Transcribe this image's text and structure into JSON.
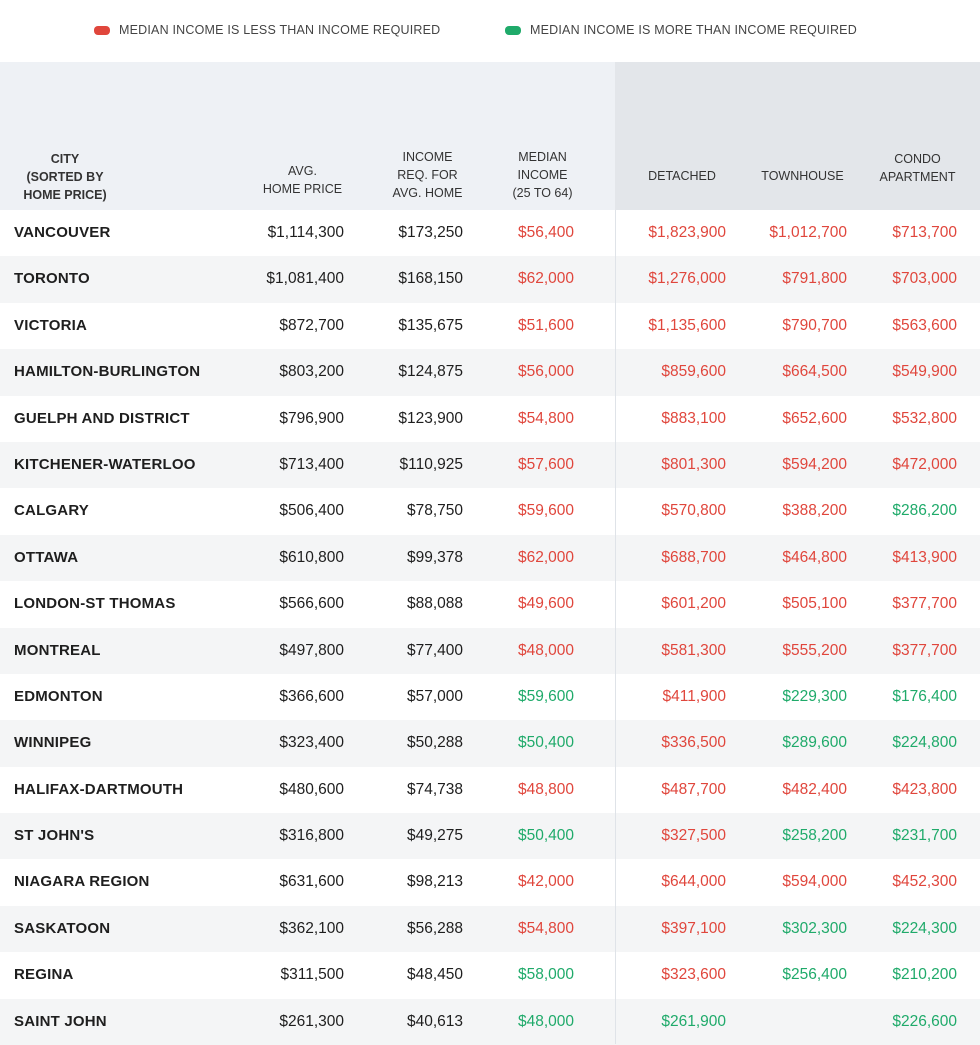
{
  "legend": [
    {
      "label": "MEDIAN INCOME IS LESS THAN INCOME REQUIRED",
      "color": "#e0463c"
    },
    {
      "label": "MEDIAN INCOME IS MORE THAN INCOME REQUIRED",
      "color": "#1faa6a"
    }
  ],
  "colors": {
    "red": "#e0463c",
    "green": "#1faa6a",
    "neutral": "#1e1e1e"
  },
  "chart_data": {
    "type": "table",
    "columns": [
      "CITY\n(SORTED BY\nHOME PRICE)",
      "AVG.\nHOME PRICE",
      "INCOME\nREQ. FOR\nAVG. HOME",
      "MEDIAN\nINCOME\n(25 TO 64)",
      "DETACHED",
      "TOWNHOUSE",
      "CONDO\nAPARTMENT"
    ],
    "rows": [
      {
        "city": "VANCOUVER",
        "avg": "$1,114,300",
        "req": "$173,250",
        "median": [
          "$56,400",
          "red"
        ],
        "detached": [
          "$1,823,900",
          "red"
        ],
        "townhouse": [
          "$1,012,700",
          "red"
        ],
        "condo": [
          "$713,700",
          "red"
        ]
      },
      {
        "city": "TORONTO",
        "avg": "$1,081,400",
        "req": "$168,150",
        "median": [
          "$62,000",
          "red"
        ],
        "detached": [
          "$1,276,000",
          "red"
        ],
        "townhouse": [
          "$791,800",
          "red"
        ],
        "condo": [
          "$703,000",
          "red"
        ]
      },
      {
        "city": "VICTORIA",
        "avg": "$872,700",
        "req": "$135,675",
        "median": [
          "$51,600",
          "red"
        ],
        "detached": [
          "$1,135,600",
          "red"
        ],
        "townhouse": [
          "$790,700",
          "red"
        ],
        "condo": [
          "$563,600",
          "red"
        ]
      },
      {
        "city": "HAMILTON-BURLINGTON",
        "avg": "$803,200",
        "req": "$124,875",
        "median": [
          "$56,000",
          "red"
        ],
        "detached": [
          "$859,600",
          "red"
        ],
        "townhouse": [
          "$664,500",
          "red"
        ],
        "condo": [
          "$549,900",
          "red"
        ]
      },
      {
        "city": "GUELPH AND DISTRICT",
        "avg": "$796,900",
        "req": "$123,900",
        "median": [
          "$54,800",
          "red"
        ],
        "detached": [
          "$883,100",
          "red"
        ],
        "townhouse": [
          "$652,600",
          "red"
        ],
        "condo": [
          "$532,800",
          "red"
        ]
      },
      {
        "city": "KITCHENER-WATERLOO",
        "avg": "$713,400",
        "req": "$110,925",
        "median": [
          "$57,600",
          "red"
        ],
        "detached": [
          "$801,300",
          "red"
        ],
        "townhouse": [
          "$594,200",
          "red"
        ],
        "condo": [
          "$472,000",
          "red"
        ]
      },
      {
        "city": "CALGARY",
        "avg": "$506,400",
        "req": "$78,750",
        "median": [
          "$59,600",
          "red"
        ],
        "detached": [
          "$570,800",
          "red"
        ],
        "townhouse": [
          "$388,200",
          "red"
        ],
        "condo": [
          "$286,200",
          "green"
        ]
      },
      {
        "city": "OTTAWA",
        "avg": "$610,800",
        "req": "$99,378",
        "median": [
          "$62,000",
          "red"
        ],
        "detached": [
          "$688,700",
          "red"
        ],
        "townhouse": [
          "$464,800",
          "red"
        ],
        "condo": [
          "$413,900",
          "red"
        ]
      },
      {
        "city": "LONDON-ST THOMAS",
        "avg": "$566,600",
        "req": "$88,088",
        "median": [
          "$49,600",
          "red"
        ],
        "detached": [
          "$601,200",
          "red"
        ],
        "townhouse": [
          "$505,100",
          "red"
        ],
        "condo": [
          "$377,700",
          "red"
        ]
      },
      {
        "city": "MONTREAL",
        "avg": "$497,800",
        "req": "$77,400",
        "median": [
          "$48,000",
          "red"
        ],
        "detached": [
          "$581,300",
          "red"
        ],
        "townhouse": [
          "$555,200",
          "red"
        ],
        "condo": [
          "$377,700",
          "red"
        ]
      },
      {
        "city": "EDMONTON",
        "avg": "$366,600",
        "req": "$57,000",
        "median": [
          "$59,600",
          "green"
        ],
        "detached": [
          "$411,900",
          "red"
        ],
        "townhouse": [
          "$229,300",
          "green"
        ],
        "condo": [
          "$176,400",
          "green"
        ]
      },
      {
        "city": "WINNIPEG",
        "avg": "$323,400",
        "req": "$50,288",
        "median": [
          "$50,400",
          "green"
        ],
        "detached": [
          "$336,500",
          "red"
        ],
        "townhouse": [
          "$289,600",
          "green"
        ],
        "condo": [
          "$224,800",
          "green"
        ]
      },
      {
        "city": "HALIFAX-DARTMOUTH",
        "avg": "$480,600",
        "req": "$74,738",
        "median": [
          "$48,800",
          "red"
        ],
        "detached": [
          "$487,700",
          "red"
        ],
        "townhouse": [
          "$482,400",
          "red"
        ],
        "condo": [
          "$423,800",
          "red"
        ]
      },
      {
        "city": "ST JOHN'S",
        "avg": "$316,800",
        "req": "$49,275",
        "median": [
          "$50,400",
          "green"
        ],
        "detached": [
          "$327,500",
          "red"
        ],
        "townhouse": [
          "$258,200",
          "green"
        ],
        "condo": [
          "$231,700",
          "green"
        ]
      },
      {
        "city": "NIAGARA REGION",
        "avg": "$631,600",
        "req": "$98,213",
        "median": [
          "$42,000",
          "red"
        ],
        "detached": [
          "$644,000",
          "red"
        ],
        "townhouse": [
          "$594,000",
          "red"
        ],
        "condo": [
          "$452,300",
          "red"
        ]
      },
      {
        "city": "SASKATOON",
        "avg": "$362,100",
        "req": "$56,288",
        "median": [
          "$54,800",
          "red"
        ],
        "detached": [
          "$397,100",
          "red"
        ],
        "townhouse": [
          "$302,300",
          "green"
        ],
        "condo": [
          "$224,300",
          "green"
        ]
      },
      {
        "city": "REGINA",
        "avg": "$311,500",
        "req": "$48,450",
        "median": [
          "$58,000",
          "green"
        ],
        "detached": [
          "$323,600",
          "red"
        ],
        "townhouse": [
          "$256,400",
          "green"
        ],
        "condo": [
          "$210,200",
          "green"
        ]
      },
      {
        "city": "SAINT JOHN",
        "avg": "$261,300",
        "req": "$40,613",
        "median": [
          "$48,000",
          "green"
        ],
        "detached": [
          "$261,900",
          "green"
        ],
        "townhouse": [
          "",
          null
        ],
        "condo": [
          "$226,600",
          "green"
        ]
      }
    ]
  }
}
